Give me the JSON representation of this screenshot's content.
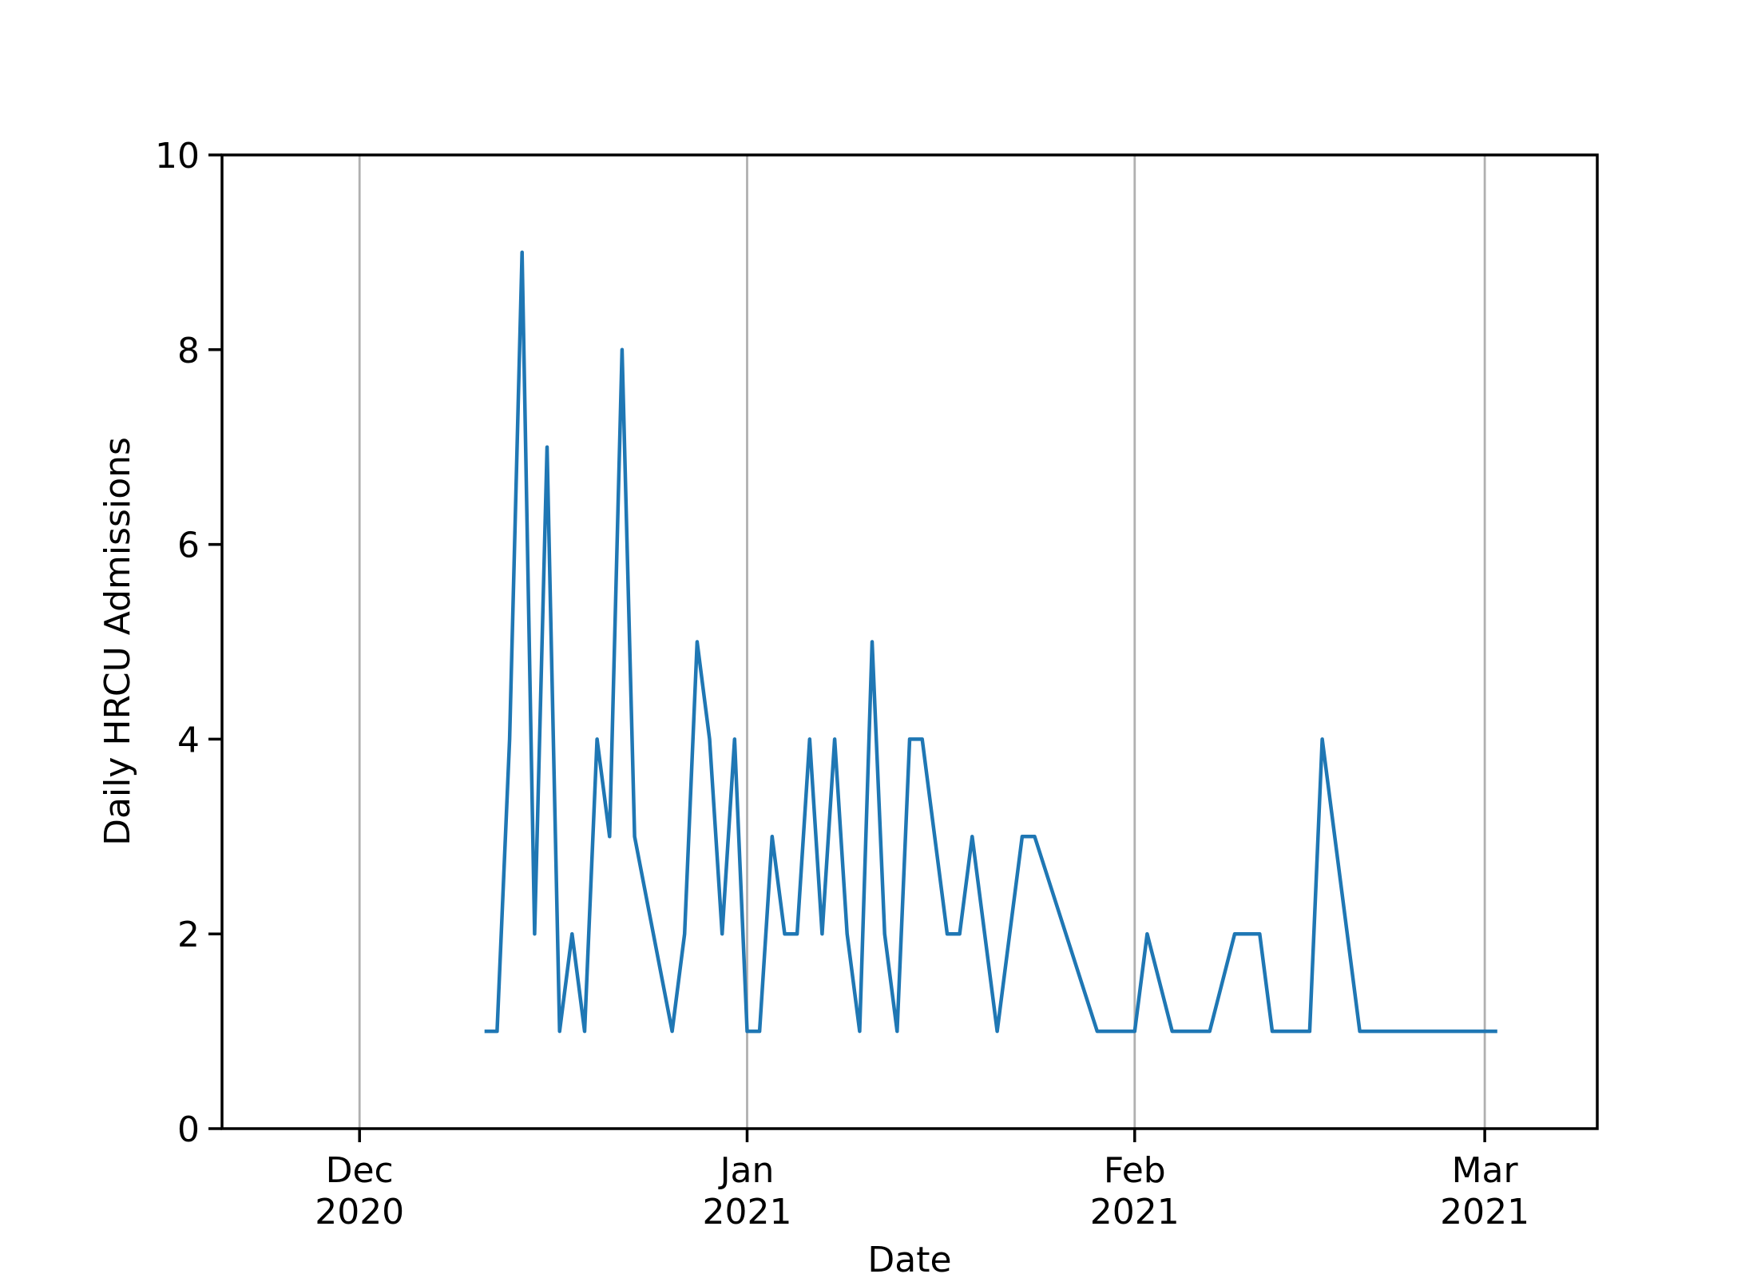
{
  "chart_data": {
    "type": "line",
    "x_label": "Date",
    "y_label": "Daily HRCU Admissions",
    "x": [
      "2020-12-11",
      "2020-12-12",
      "2020-12-13",
      "2020-12-14",
      "2020-12-15",
      "2020-12-16",
      "2020-12-17",
      "2020-12-18",
      "2020-12-19",
      "2020-12-20",
      "2020-12-21",
      "2020-12-22",
      "2020-12-23",
      "2020-12-26",
      "2020-12-27",
      "2020-12-28",
      "2020-12-29",
      "2020-12-30",
      "2020-12-31",
      "2021-01-01",
      "2021-01-02",
      "2021-01-03",
      "2021-01-04",
      "2021-01-05",
      "2021-01-06",
      "2021-01-07",
      "2021-01-08",
      "2021-01-09",
      "2021-01-10",
      "2021-01-11",
      "2021-01-12",
      "2021-01-13",
      "2021-01-14",
      "2021-01-15",
      "2021-01-17",
      "2021-01-18",
      "2021-01-19",
      "2021-01-21",
      "2021-01-23",
      "2021-01-24",
      "2021-01-29",
      "2021-01-30",
      "2021-01-31",
      "2021-02-01",
      "2021-02-02",
      "2021-02-04",
      "2021-02-07",
      "2021-02-09",
      "2021-02-11",
      "2021-02-12",
      "2021-02-15",
      "2021-02-16",
      "2021-02-19",
      "2021-03-02"
    ],
    "series": [
      {
        "name": "Daily HRCU Admissions",
        "color": "#1f77b4",
        "values": [
          1,
          1,
          4,
          9,
          2,
          7,
          1,
          2,
          1,
          4,
          3,
          8,
          3,
          1,
          2,
          5,
          4,
          2,
          4,
          1,
          1,
          3,
          2,
          2,
          4,
          2,
          4,
          2,
          1,
          5,
          2,
          1,
          4,
          4,
          2,
          2,
          3,
          1,
          3,
          3,
          1,
          1,
          1,
          1,
          2,
          1,
          1,
          2,
          2,
          1,
          1,
          4,
          1,
          1
        ]
      }
    ],
    "xlim": [
      "2020-11-20",
      "2021-03-10"
    ],
    "xticks": [
      {
        "value": "2020-12-01",
        "label": "Dec\n2020"
      },
      {
        "value": "2021-01-01",
        "label": "Jan\n2021"
      },
      {
        "value": "2021-02-01",
        "label": "Feb\n2021"
      },
      {
        "value": "2021-03-01",
        "label": "Mar\n2021"
      }
    ],
    "ylim": [
      0,
      10
    ],
    "yticks": [
      0,
      2,
      4,
      6,
      8,
      10
    ],
    "grid": "x"
  }
}
